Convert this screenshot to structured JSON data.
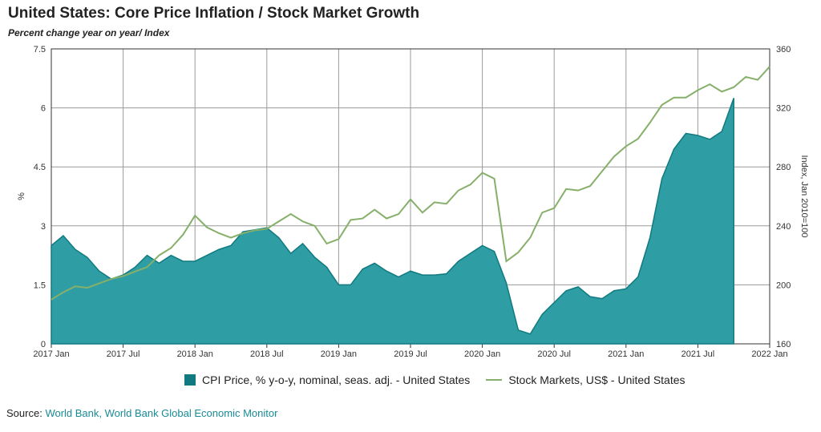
{
  "title": "United States: Core Price Inflation / Stock Market Growth",
  "subtitle": "Percent change year on year/ Index",
  "source": {
    "label": "Source:",
    "text": "World Bank, World Bank Global Economic Monitor"
  },
  "colors": {
    "cpi": "#2e9ea4",
    "cpi_stroke": "#117a80",
    "stock": "#86b06a",
    "grid": "#9a9a9a"
  },
  "legend": {
    "cpi": "CPI Price, % y-o-y, nominal, seas. adj. - United States",
    "stock": "Stock Markets, US$ - United States"
  },
  "chart_data": {
    "type": "area",
    "x_ticks": [
      "2017 Jan",
      "2017 Jul",
      "2018 Jan",
      "2018 Jul",
      "2019 Jan",
      "2019 Jul",
      "2020 Jan",
      "2020 Jul",
      "2021 Jan",
      "2021 Jul",
      "2022 Jan"
    ],
    "x_range_months": [
      0,
      60
    ],
    "left_axis": {
      "label": "%",
      "range": [
        0,
        7.5
      ],
      "ticks": [
        "0",
        "1.5",
        "3",
        "4.5",
        "6",
        "7.5"
      ]
    },
    "right_axis": {
      "label": "Index, Jan 2010=100",
      "range": [
        160,
        360
      ],
      "ticks": [
        "160",
        "200",
        "240",
        "280",
        "320",
        "360"
      ]
    },
    "grid": true,
    "legend_position": "bottom",
    "series": [
      {
        "name": "CPI Price, % y-o-y, nominal, seas. adj. - United States",
        "kind": "area",
        "axis": "left",
        "x": [
          0,
          1,
          2,
          3,
          4,
          5,
          6,
          7,
          8,
          9,
          10,
          11,
          12,
          13,
          14,
          15,
          16,
          17,
          18,
          19,
          20,
          21,
          22,
          23,
          24,
          25,
          26,
          27,
          28,
          29,
          30,
          31,
          32,
          33,
          34,
          35,
          36,
          37,
          38,
          39,
          40,
          41,
          42,
          43,
          44,
          45,
          46,
          47,
          48,
          49,
          50,
          51,
          52,
          53,
          54,
          55,
          56,
          57
        ],
        "values": [
          2.5,
          2.75,
          2.4,
          2.2,
          1.85,
          1.65,
          1.75,
          1.95,
          2.25,
          2.05,
          2.25,
          2.1,
          2.1,
          2.25,
          2.4,
          2.5,
          2.85,
          2.9,
          2.95,
          2.7,
          2.3,
          2.55,
          2.2,
          1.95,
          1.5,
          1.5,
          1.9,
          2.05,
          1.85,
          1.7,
          1.85,
          1.75,
          1.75,
          1.78,
          2.1,
          2.3,
          2.5,
          2.35,
          1.55,
          0.35,
          0.25,
          0.75,
          1.05,
          1.35,
          1.45,
          1.2,
          1.15,
          1.35,
          1.4,
          1.7,
          2.7,
          4.2,
          4.95,
          5.35,
          5.3,
          5.2,
          5.4,
          6.25
        ]
      },
      {
        "name": "Stock Markets, US$ - United States",
        "kind": "line",
        "axis": "right",
        "x": [
          0,
          1,
          2,
          3,
          4,
          5,
          6,
          7,
          8,
          9,
          10,
          11,
          12,
          13,
          14,
          15,
          16,
          17,
          18,
          19,
          20,
          21,
          22,
          23,
          24,
          25,
          26,
          27,
          28,
          29,
          30,
          31,
          32,
          33,
          34,
          35,
          36,
          37,
          38,
          39,
          40,
          41,
          42,
          43,
          44,
          45,
          46,
          47,
          48,
          49,
          50,
          51,
          52,
          53,
          54,
          55,
          56,
          57,
          58,
          59,
          60
        ],
        "values": [
          190,
          195,
          199,
          198,
          201,
          204,
          206,
          209,
          212,
          220,
          225,
          234,
          247,
          239,
          235,
          232,
          235,
          237,
          238,
          243,
          248,
          243,
          240,
          228,
          231,
          244,
          245,
          251,
          245,
          248,
          258,
          249,
          256,
          255,
          264,
          268,
          276,
          272,
          216,
          222,
          232,
          249,
          252,
          265,
          264,
          267,
          277,
          287,
          294,
          299,
          310,
          322,
          327,
          327,
          332,
          336,
          331,
          334,
          341,
          339,
          348
        ]
      }
    ]
  }
}
